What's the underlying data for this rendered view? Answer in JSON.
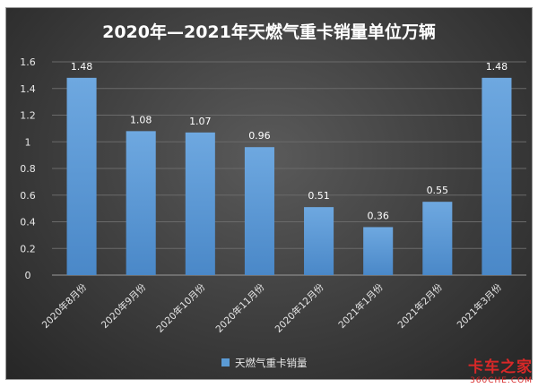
{
  "chart_data": {
    "type": "bar",
    "title": "2020年—2021年天燃气重卡销量单位万辆",
    "categories": [
      "2020年8月份",
      "2020年9月份",
      "2020年10月份",
      "2020年11月份",
      "2020年12月份",
      "2021年1月份",
      "2021年2月份",
      "2021年3月份"
    ],
    "series": [
      {
        "name": "天燃气重卡销量",
        "values": [
          1.48,
          1.08,
          1.07,
          0.96,
          0.51,
          0.36,
          0.55,
          1.48
        ]
      }
    ],
    "ylim": [
      0,
      1.6
    ],
    "yticks": [
      0,
      0.2,
      0.4,
      0.6,
      0.8,
      1,
      1.2,
      1.4,
      1.6
    ],
    "ytick_labels": [
      "0",
      "0.2",
      "0.4",
      "0.6",
      "0.8",
      "1",
      "1.2",
      "1.4",
      "1.6"
    ],
    "grid": true,
    "legend": "bottom",
    "colors": {
      "bar": "#5b9bd5",
      "bar_light": "#7fb2e5",
      "background": "#3d3d3d"
    }
  },
  "watermark": {
    "main": "卡车之家",
    "sub": "360CHE.COM"
  }
}
